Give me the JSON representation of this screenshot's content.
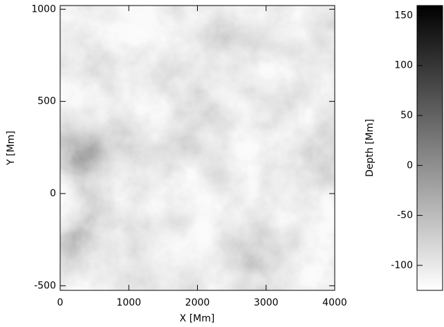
{
  "chart_data": {
    "type": "image",
    "xlabel": "X [Mm]",
    "ylabel": "Y [Mm]",
    "xlim": [
      0,
      4000
    ],
    "xticks": [
      0,
      1000,
      2000,
      3000,
      4000
    ],
    "ylim": [
      -525,
      1020
    ],
    "yticks": [
      -500,
      0,
      500,
      1000
    ],
    "colorbar": {
      "label": "Depth [Mm]",
      "lim": [
        -125,
        160
      ],
      "ticks": [
        -100,
        -50,
        0,
        50,
        100,
        150
      ],
      "colors": [
        "#ffffff",
        "#000000"
      ]
    }
  }
}
